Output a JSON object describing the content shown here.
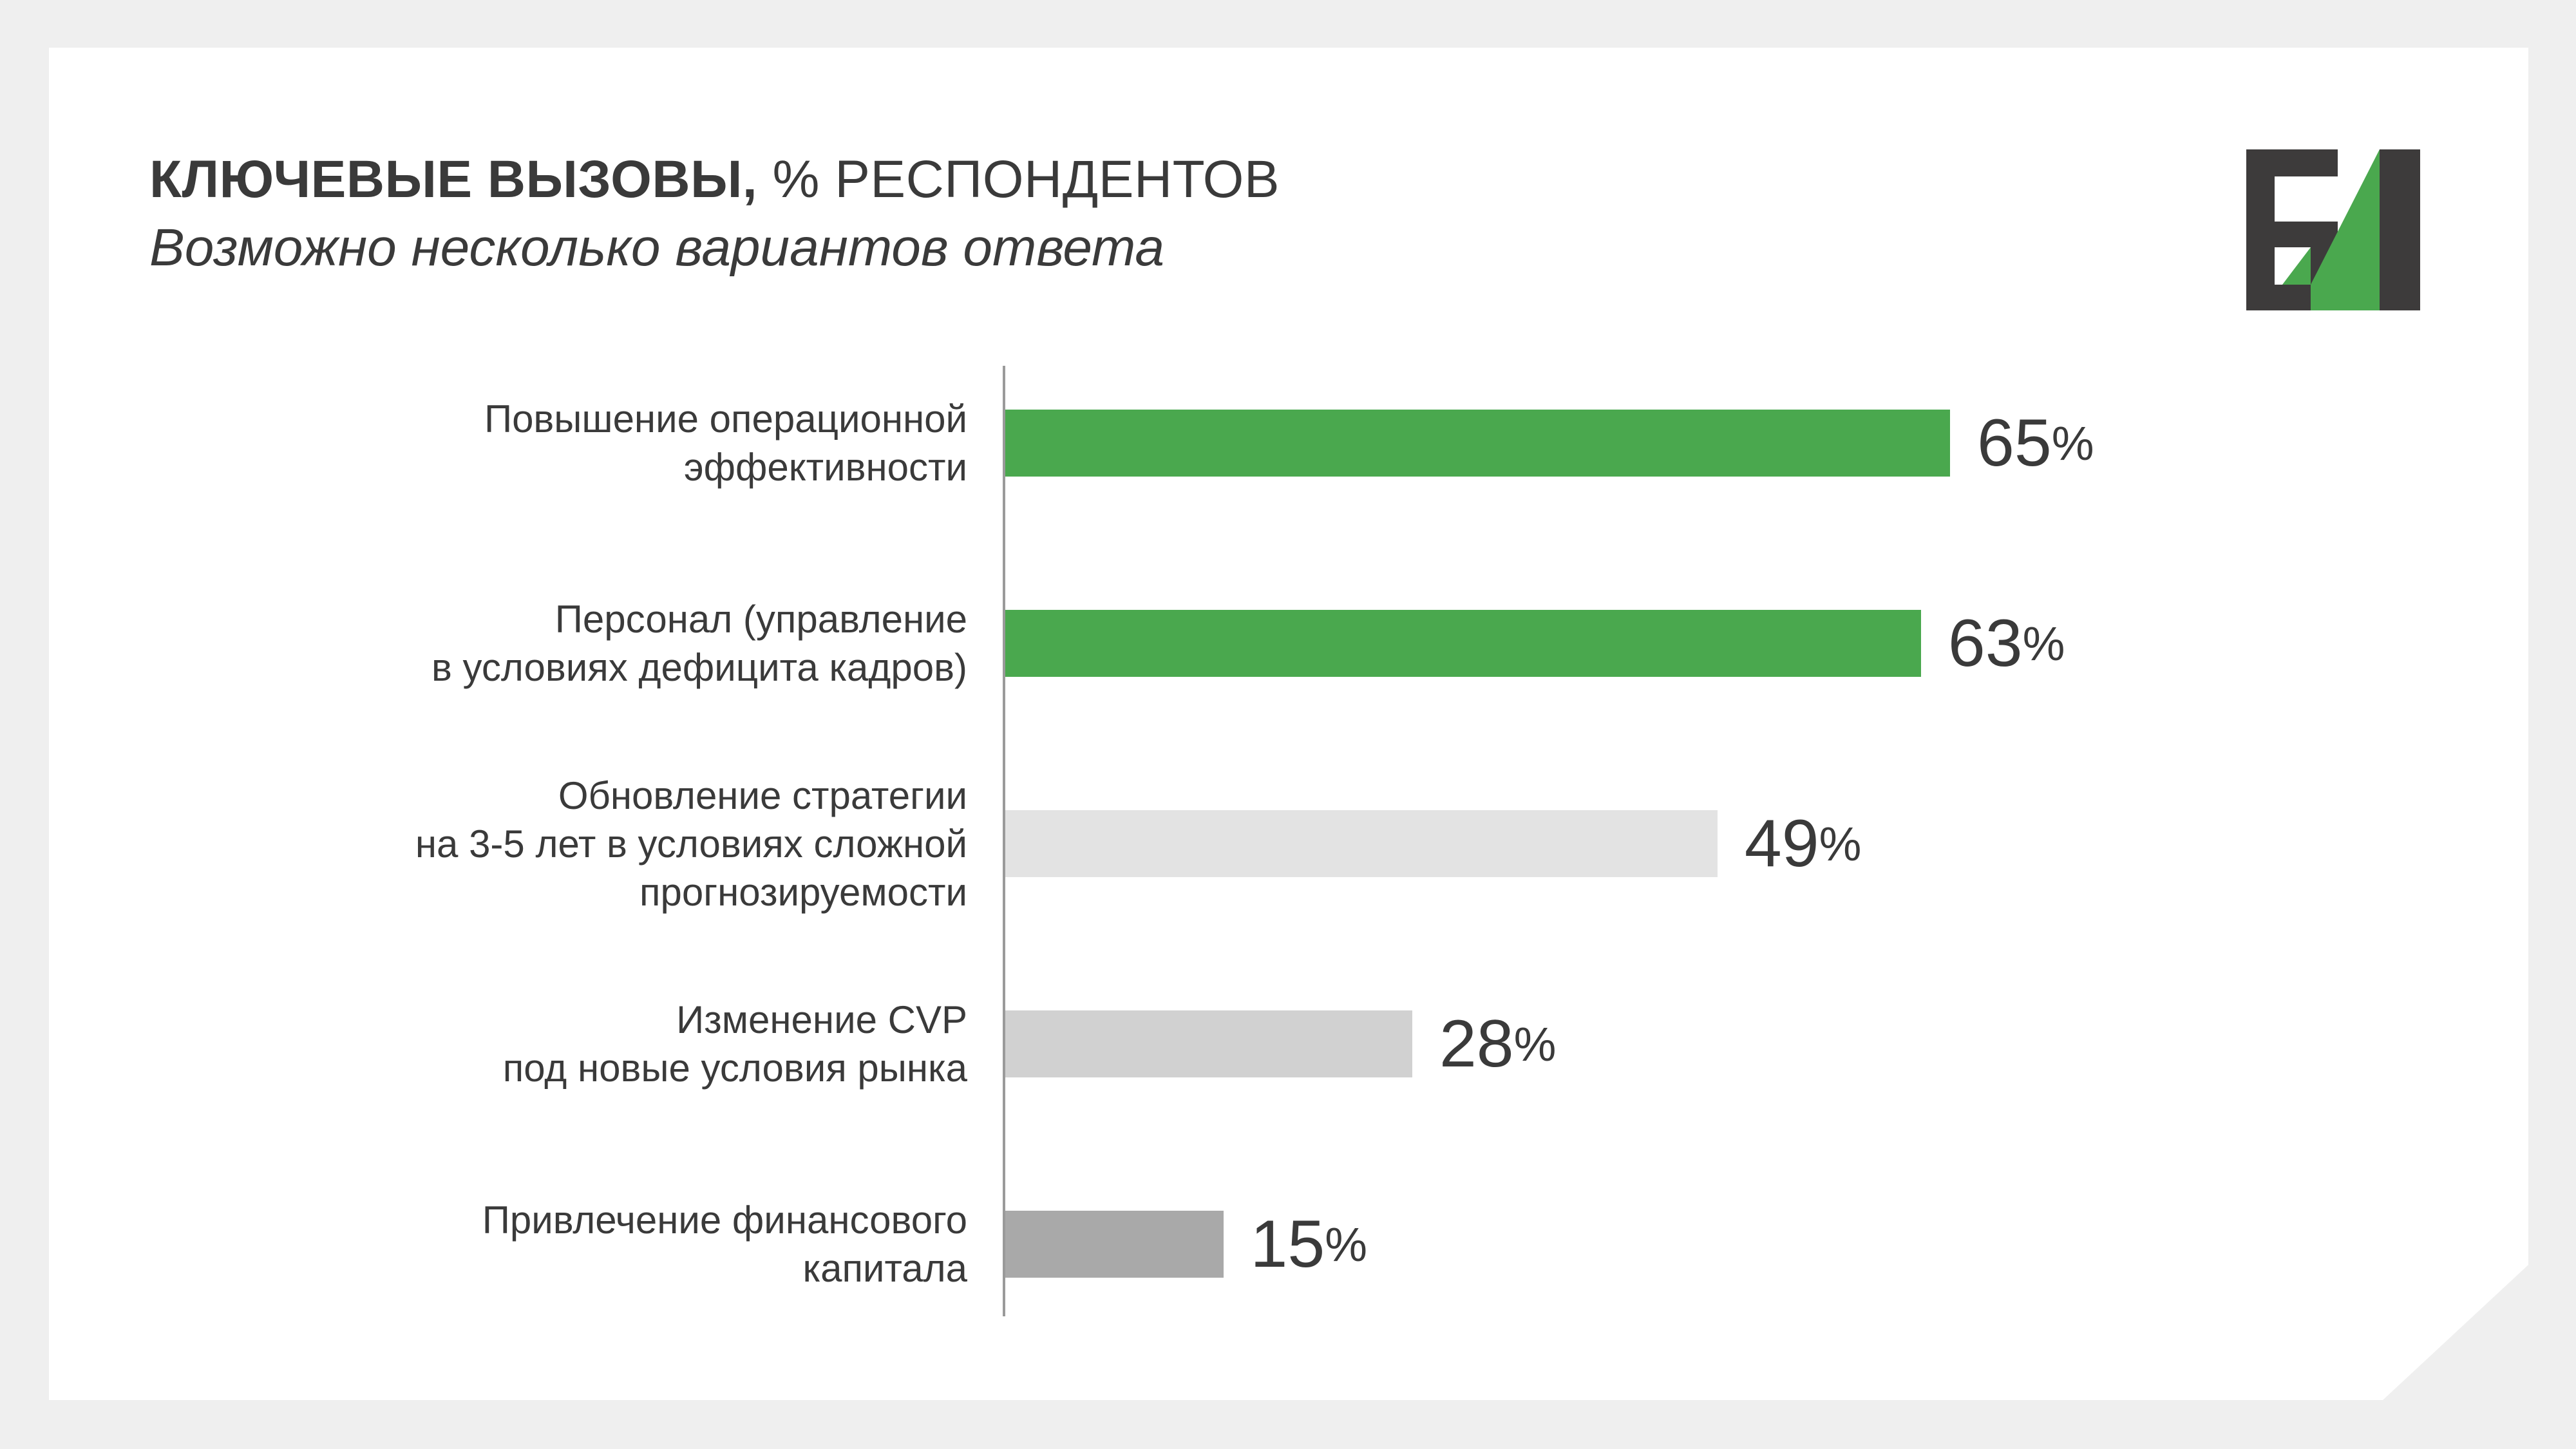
{
  "header": {
    "title_bold": "КЛЮЧЕВЫЕ ВЫЗОВЫ,",
    "title_rest": "% РЕСПОНДЕНТОВ",
    "subtitle": "Возможно несколько вариантов ответа"
  },
  "logo": {
    "icon": "b1-logo-icon",
    "text": "Б1",
    "colors": {
      "dark": "#3d3b3b",
      "green": "#4aa84e"
    }
  },
  "colors": {
    "axis": "#9a9a9a",
    "text": "#3a3a3a",
    "background": "#efefef"
  },
  "chart_data": {
    "type": "bar",
    "orientation": "horizontal",
    "title": "КЛЮЧЕВЫЕ ВЫЗОВЫ, % РЕСПОНДЕНТОВ",
    "subtitle": "Возможно несколько вариантов ответа",
    "xlabel": "",
    "ylabel": "",
    "unit": "%",
    "xlim": [
      0,
      100
    ],
    "grid": false,
    "categories": [
      "Повышение операционной\nэффективности",
      "Персонал (управление\nв условиях дефицита кадров)",
      "Обновление стратегии\nна 3-5 лет в условиях сложной\nпрогнозируемости",
      "Изменение CVP\nпод новые условия рынка",
      "Привлечение финансового\nкапитала"
    ],
    "values": [
      65,
      63,
      49,
      28,
      15
    ],
    "bar_colors": [
      "#4aa84e",
      "#4aa84e",
      "#e3e3e3",
      "#d1d1d1",
      "#a9a9a9"
    ]
  }
}
